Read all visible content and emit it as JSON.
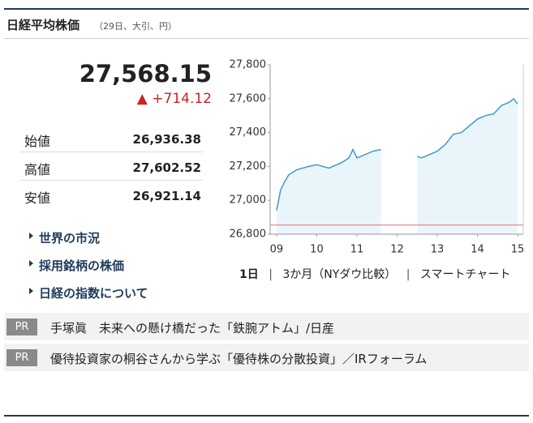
{
  "header": {
    "title": "日経平均株価",
    "subtitle": "（29日、大引、円）"
  },
  "quote": {
    "price": "27,568.15",
    "change_mark": "▲",
    "change": "+714.12"
  },
  "stats": [
    {
      "label": "始値",
      "value": "26,936.38"
    },
    {
      "label": "高値",
      "value": "27,602.52"
    },
    {
      "label": "安値",
      "value": "26,921.14"
    }
  ],
  "links": [
    "世界の市況",
    "採用銘柄の株価",
    "日経の指数について"
  ],
  "chart_data": {
    "type": "line",
    "x": [
      9.0,
      9.05,
      9.1,
      9.2,
      9.3,
      9.5,
      9.8,
      10.0,
      10.3,
      10.6,
      10.8,
      10.9,
      11.0,
      11.2,
      11.4,
      11.6,
      null,
      12.5,
      12.6,
      12.8,
      13.0,
      13.2,
      13.4,
      13.6,
      13.8,
      14.0,
      14.2,
      14.4,
      14.6,
      14.8,
      14.9,
      15.0
    ],
    "series": [
      {
        "color": "#3d9cc9",
        "values": [
          26940,
          27000,
          27060,
          27110,
          27150,
          27180,
          27200,
          27210,
          27190,
          27220,
          27250,
          27300,
          27250,
          27270,
          27290,
          27300,
          null,
          27260,
          27250,
          27270,
          27290,
          27330,
          27390,
          27400,
          27440,
          27480,
          27500,
          27510,
          27560,
          27580,
          27600,
          27568.15
        ]
      }
    ],
    "previous_close": 26854.03,
    "reference_color": "#e07070",
    "area_color": "#eaf5fb",
    "xlim": [
      8.84,
      15.14
    ],
    "ylim": [
      26800,
      27800
    ],
    "xticks": [
      {
        "value": 9,
        "label": "09"
      },
      10,
      11,
      12,
      13,
      14,
      15
    ],
    "yticks": [
      {
        "value": 26800,
        "label": "26,800"
      },
      {
        "value": 27000,
        "label": "27,000"
      },
      {
        "value": 27200,
        "label": "27,200"
      },
      {
        "value": 27400,
        "label": "27,400"
      },
      {
        "value": 27600,
        "label": "27,600"
      },
      {
        "value": 27800,
        "label": "27,800"
      }
    ],
    "grid": false
  },
  "chart_tabs": [
    "1日",
    "3か月（NYダウ比較）",
    "スマートチャート"
  ],
  "pr": [
    {
      "badge": "PR",
      "text": "手塚眞　未来への懸け橋だった「鉄腕アトム」/日産"
    },
    {
      "badge": "PR",
      "text": "優待投資家の桐谷さんから学ぶ「優待株の分散投資」／IRフォーラム"
    }
  ]
}
